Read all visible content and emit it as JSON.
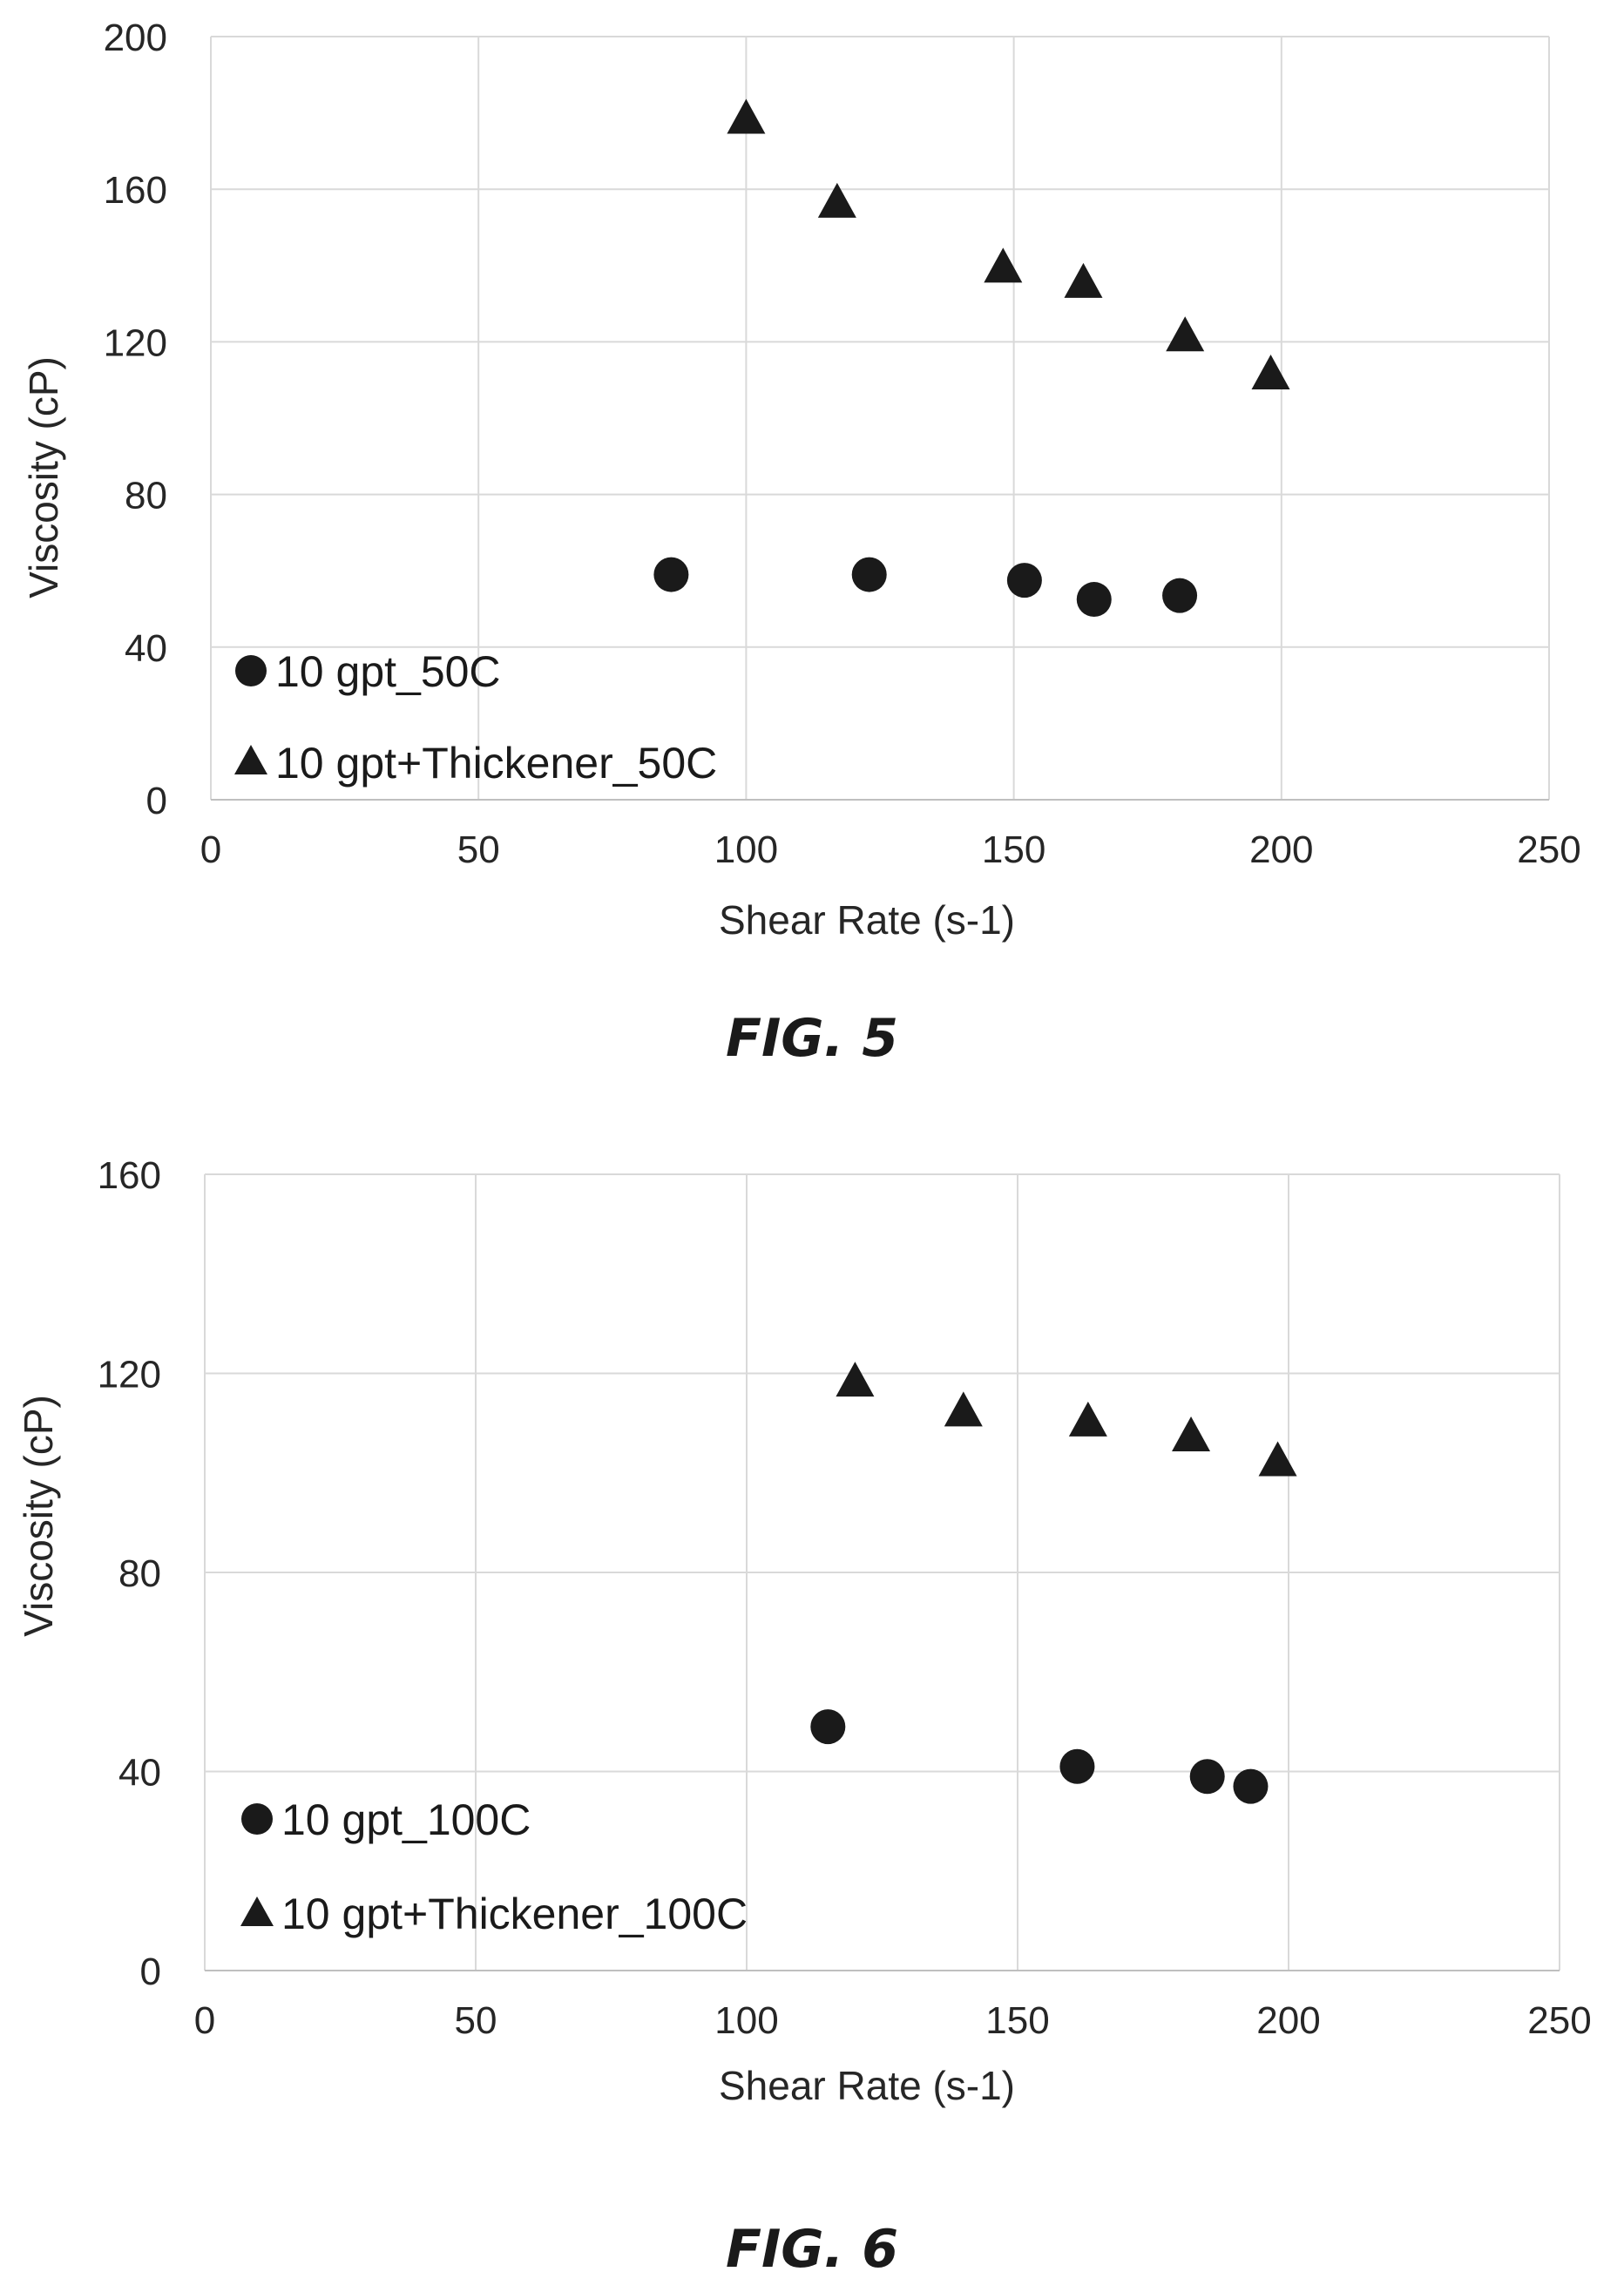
{
  "chart_data": [
    {
      "type": "scatter",
      "caption": "FIG. 5",
      "xlabel": "Shear Rate (s-1)",
      "ylabel": "Viscosity (cP)",
      "xlim": [
        0,
        250
      ],
      "ylim": [
        0,
        200
      ],
      "xticks": [
        "0",
        "50",
        "100",
        "150",
        "200",
        "250"
      ],
      "yticks": [
        "0",
        "40",
        "80",
        "120",
        "160",
        "200"
      ],
      "grid": true,
      "legend_position": "bottom-left",
      "series": [
        {
          "name": "10 gpt_50C",
          "marker": "circle",
          "x": [
            86,
            123,
            152,
            165,
            181
          ],
          "y": [
            59,
            59,
            57.5,
            52.5,
            53.5
          ]
        },
        {
          "name": "10 gpt+Thickener_50C",
          "marker": "triangle",
          "x": [
            100,
            117,
            148,
            163,
            182,
            198
          ],
          "y": [
            178,
            156,
            139,
            135,
            121,
            111
          ]
        }
      ]
    },
    {
      "type": "scatter",
      "caption": "FIG. 6",
      "xlabel": "Shear Rate (s-1)",
      "ylabel": "Viscosity (cP)",
      "xlim": [
        0,
        250
      ],
      "ylim": [
        0,
        160
      ],
      "xticks": [
        "0",
        "50",
        "100",
        "150",
        "200",
        "250"
      ],
      "yticks": [
        "0",
        "40",
        "80",
        "120",
        "160"
      ],
      "grid": true,
      "legend_position": "bottom-left",
      "series": [
        {
          "name": "10 gpt_100C",
          "marker": "circle",
          "x": [
            115,
            161,
            185,
            193
          ],
          "y": [
            49,
            41,
            39,
            37
          ]
        },
        {
          "name": "10 gpt+Thickener_100C",
          "marker": "triangle",
          "x": [
            120,
            140,
            163,
            182,
            198
          ],
          "y": [
            118,
            112,
            110,
            107,
            102
          ]
        }
      ]
    }
  ],
  "colors": {
    "marker": "#1a1a1a",
    "grid": "#d9d9d9",
    "text": "#262626"
  }
}
